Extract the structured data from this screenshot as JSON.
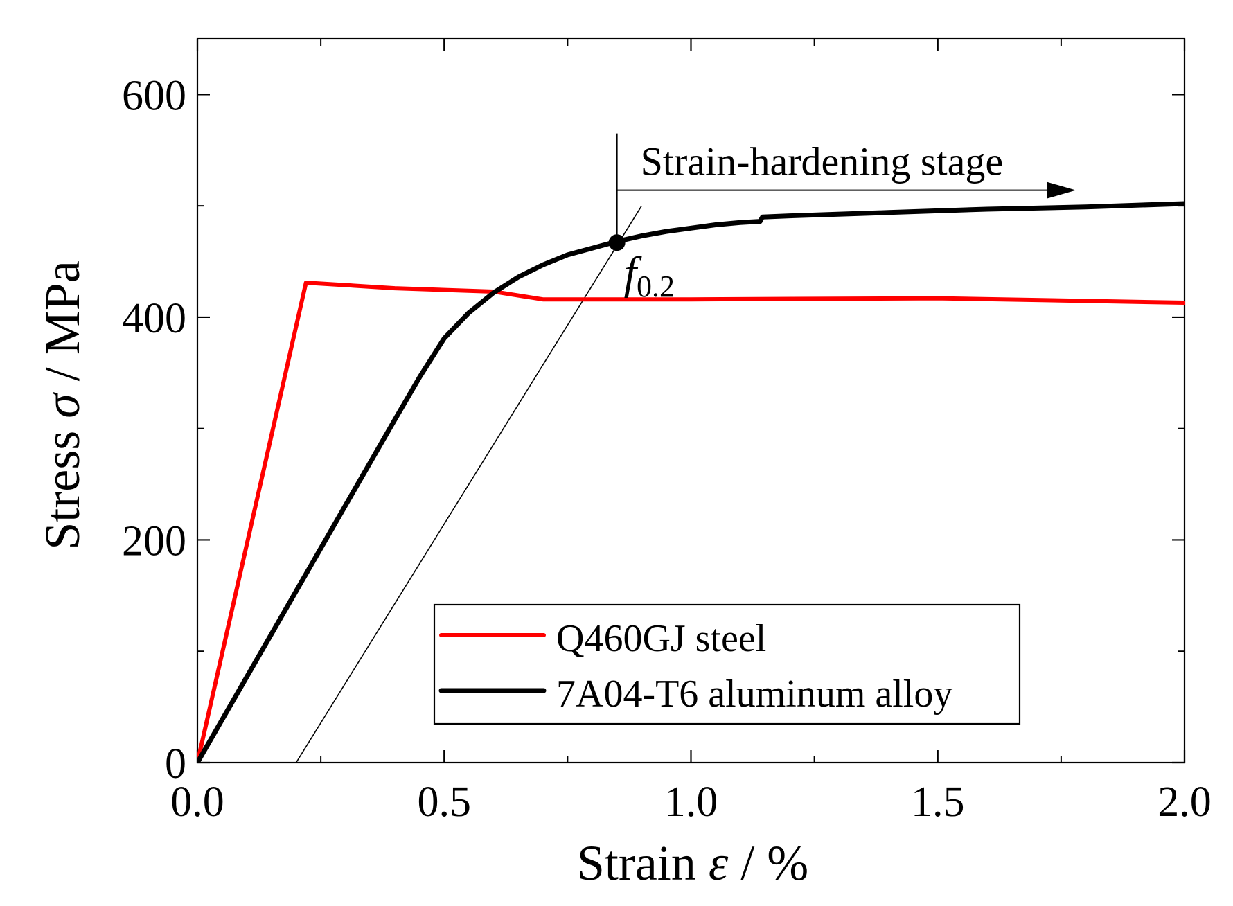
{
  "chart_data": {
    "type": "line",
    "title": "",
    "xlabel": {
      "prefix": "Strain ",
      "symbol": "ε",
      "suffix": " / %"
    },
    "ylabel": {
      "prefix": "Stress ",
      "symbol": "σ",
      "suffix": " / MPa"
    },
    "xlim": [
      0,
      2.0
    ],
    "ylim": [
      0,
      650
    ],
    "x_ticks": [
      {
        "value": 0,
        "label": "0.0"
      },
      {
        "value": 0.5,
        "label": "0.5"
      },
      {
        "value": 1.0,
        "label": "1.0"
      },
      {
        "value": 1.5,
        "label": "1.5"
      },
      {
        "value": 2.0,
        "label": "2.0"
      }
    ],
    "x_minor_ticks": [
      0.25,
      0.75,
      1.25,
      1.75
    ],
    "y_ticks": [
      {
        "value": 0,
        "label": "0"
      },
      {
        "value": 200,
        "label": "200"
      },
      {
        "value": 400,
        "label": "400"
      },
      {
        "value": 600,
        "label": "600"
      }
    ],
    "y_minor_ticks": [
      100,
      300,
      500
    ],
    "grid": false,
    "legend_position": "bottom-center",
    "series": [
      {
        "name": "Q460GJ steel",
        "color": "#ff0000",
        "x": [
          0,
          0.22,
          0.4,
          0.6,
          0.7,
          1.0,
          1.5,
          2.0
        ],
        "y": [
          0,
          431,
          426,
          423,
          416,
          416,
          417,
          413
        ]
      },
      {
        "name": "7A04-T6 aluminum alloy",
        "color": "#000000",
        "x": [
          0,
          0.1,
          0.2,
          0.3,
          0.4,
          0.45,
          0.5,
          0.55,
          0.6,
          0.65,
          0.7,
          0.75,
          0.8,
          0.85,
          0.9,
          0.95,
          1.0,
          1.05,
          1.1,
          1.14,
          1.145,
          1.2,
          1.4,
          1.6,
          1.8,
          2.0
        ],
        "y": [
          0,
          77,
          154,
          231,
          308,
          346,
          381,
          404,
          422,
          436,
          447,
          456,
          462,
          468,
          473,
          477,
          480,
          483,
          485,
          486,
          490,
          491,
          494,
          497,
          499,
          502
        ]
      }
    ],
    "offset_line": {
      "x": [
        0.2,
        0.9
      ],
      "y": [
        0,
        500
      ],
      "color": "#000000"
    },
    "yield_point": {
      "x": 0.85,
      "y": 467,
      "label_main": "f",
      "label_sub": "0.2"
    },
    "stage_annotation": {
      "text": "Strain-hardening stage",
      "start_x": 0.85,
      "end_x": 1.78,
      "arrow_y": 514,
      "marker_top_y": 565
    }
  }
}
